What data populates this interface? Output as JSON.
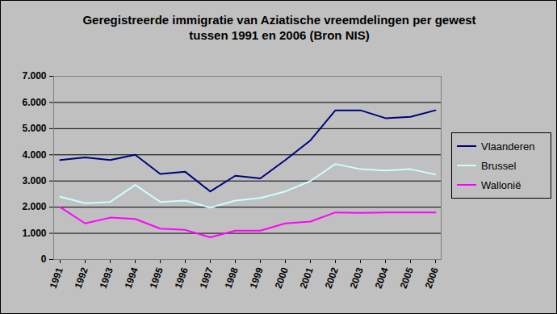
{
  "chart_data": {
    "type": "line",
    "title": "Geregistreerde immigratie van Aziatische vreemdelingen per gewest tussen 1991 en 2006 (Bron NIS)",
    "categories": [
      "1991",
      "1992",
      "1993",
      "1994",
      "1995",
      "1996",
      "1997",
      "1998",
      "1999",
      "2000",
      "2001",
      "2002",
      "2003",
      "2004",
      "2005",
      "2006"
    ],
    "series": [
      {
        "name": "Vlaanderen",
        "color": "#000080",
        "values": [
          3800,
          3900,
          3800,
          4000,
          3270,
          3350,
          2600,
          3200,
          3100,
          3800,
          4550,
          5700,
          5700,
          5400,
          5450,
          5700
        ]
      },
      {
        "name": "Brussel",
        "color": "#ccffff",
        "values": [
          2400,
          2150,
          2200,
          2850,
          2200,
          2250,
          1980,
          2250,
          2350,
          2600,
          3000,
          3650,
          3450,
          3400,
          3450,
          3250
        ]
      },
      {
        "name": "Wallonië",
        "color": "#ff00ff",
        "values": [
          2000,
          1380,
          1600,
          1550,
          1180,
          1130,
          850,
          1100,
          1100,
          1380,
          1450,
          1800,
          1780,
          1800,
          1800,
          1800
        ]
      }
    ],
    "ylim": [
      0,
      7000
    ],
    "yticks": [
      0,
      {
        "value": 1000,
        "label": "1.000"
      },
      {
        "value": 2000,
        "label": "2.000"
      },
      {
        "value": 3000,
        "label": "3.000"
      },
      {
        "value": 4000,
        "label": "4.000"
      },
      {
        "value": 5000,
        "label": "5.000"
      },
      {
        "value": 6000,
        "label": "6.000"
      },
      {
        "value": 7000,
        "label": "7.000"
      }
    ],
    "grid": true,
    "legend": "right"
  }
}
